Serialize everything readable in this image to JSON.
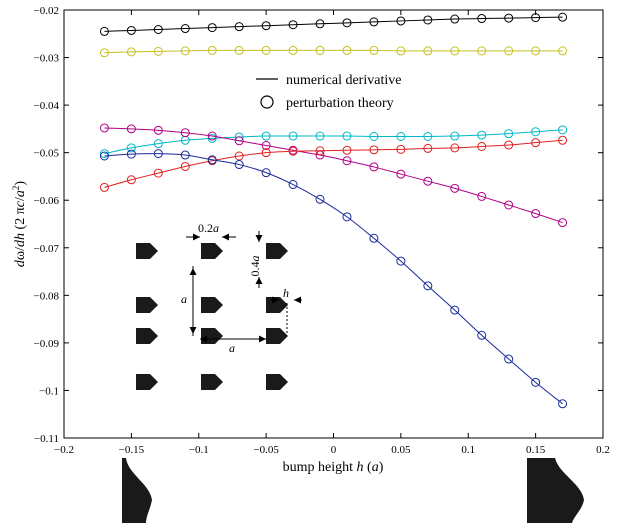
{
  "chart_data": {
    "type": "line",
    "title": "",
    "xlabel": "bump height h (a)",
    "ylabel": "dω/dh (2 πc/a²)",
    "xlim": [
      -0.2,
      0.2
    ],
    "ylim": [
      -0.11,
      -0.02
    ],
    "xticks": [
      -0.2,
      -0.15,
      -0.1,
      -0.05,
      0,
      0.05,
      0.1,
      0.15,
      0.2
    ],
    "xtick_labels": [
      "−0.2",
      "−0.15",
      "−0.1",
      "−0.05",
      "0",
      "0.05",
      "0.1",
      "0.15",
      "0.2"
    ],
    "yticks": [
      -0.11,
      -0.1,
      -0.09,
      -0.08,
      -0.07,
      -0.06,
      -0.05,
      -0.04,
      -0.03,
      -0.02
    ],
    "ytick_labels": [
      "−0.11",
      "−0.1",
      "−0.09",
      "−0.08",
      "−0.07",
      "−0.06",
      "−0.05",
      "−0.04",
      "−0.03",
      "−0.02"
    ],
    "grid": false,
    "legend": {
      "placement": "top-center",
      "entries": [
        "numerical derivative",
        "perturbation theory"
      ]
    },
    "x": [
      -0.17,
      -0.15,
      -0.13,
      -0.11,
      -0.09,
      -0.07,
      -0.05,
      -0.03,
      -0.01,
      0.01,
      0.03,
      0.05,
      0.07,
      0.09,
      0.11,
      0.13,
      0.15,
      0.17
    ],
    "series": [
      {
        "color": "#000000",
        "values": [
          -0.0245,
          -0.0243,
          -0.0241,
          -0.0239,
          -0.0237,
          -0.0235,
          -0.0233,
          -0.0231,
          -0.0229,
          -0.0227,
          -0.0225,
          -0.0223,
          -0.0221,
          -0.0219,
          -0.0218,
          -0.0217,
          -0.0216,
          -0.0215
        ]
      },
      {
        "color": "#c8c020",
        "values": [
          -0.029,
          -0.0288,
          -0.0287,
          -0.0286,
          -0.0285,
          -0.0285,
          -0.0285,
          -0.0285,
          -0.0285,
          -0.0285,
          -0.0285,
          -0.0286,
          -0.0286,
          -0.0286,
          -0.0286,
          -0.0286,
          -0.0286,
          -0.0286
        ]
      },
      {
        "color": "#00b8c8",
        "values": [
          -0.0502,
          -0.049,
          -0.0481,
          -0.0474,
          -0.047,
          -0.0467,
          -0.0465,
          -0.0465,
          -0.0465,
          -0.0465,
          -0.0466,
          -0.0466,
          -0.0466,
          -0.0465,
          -0.0463,
          -0.046,
          -0.0456,
          -0.0452
        ]
      },
      {
        "color": "#b0008a",
        "values": [
          -0.0448,
          -0.045,
          -0.0453,
          -0.0458,
          -0.0465,
          -0.0475,
          -0.0485,
          -0.0495,
          -0.0505,
          -0.0517,
          -0.053,
          -0.0545,
          -0.056,
          -0.0575,
          -0.0592,
          -0.061,
          -0.0628,
          -0.0647
        ]
      },
      {
        "color": "#e02020",
        "values": [
          -0.0573,
          -0.0557,
          -0.0543,
          -0.0529,
          -0.0517,
          -0.0507,
          -0.05,
          -0.0497,
          -0.0496,
          -0.0495,
          -0.0494,
          -0.0493,
          -0.0491,
          -0.049,
          -0.0487,
          -0.0484,
          -0.0479,
          -0.0474
        ]
      },
      {
        "color": "#1a2a9a",
        "values": [
          -0.0507,
          -0.0503,
          -0.0502,
          -0.0505,
          -0.0515,
          -0.0525,
          -0.0542,
          -0.0567,
          -0.0598,
          -0.0635,
          -0.068,
          -0.0728,
          -0.078,
          -0.0831,
          -0.0884,
          -0.0934,
          -0.0983,
          -0.1028
        ]
      }
    ]
  },
  "inset": {
    "width_label": "0.2a",
    "height_label": "0.4a",
    "spacing_v_label": "a",
    "spacing_h_label": "a",
    "bump_label": "h"
  }
}
